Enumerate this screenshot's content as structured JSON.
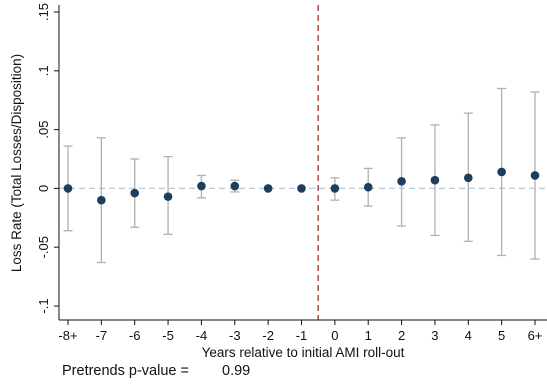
{
  "chart_data": {
    "type": "scatter",
    "subtype": "event-study coefficient plot with confidence intervals",
    "xlabel": "Years relative to initial AMI roll-out",
    "ylabel": "Loss Rate (Total Losses/Disposition)",
    "categories": [
      "-8+",
      "-7",
      "-6",
      "-5",
      "-4",
      "-3",
      "-2",
      "-1",
      "0",
      "1",
      "2",
      "3",
      "4",
      "5",
      "6+"
    ],
    "points": [
      {
        "x": "-8+",
        "y": 0.0,
        "ci_low": -0.036,
        "ci_high": 0.036
      },
      {
        "x": "-7",
        "y": -0.01,
        "ci_low": -0.063,
        "ci_high": 0.043
      },
      {
        "x": "-6",
        "y": -0.004,
        "ci_low": -0.033,
        "ci_high": 0.025
      },
      {
        "x": "-5",
        "y": -0.007,
        "ci_low": -0.039,
        "ci_high": 0.027
      },
      {
        "x": "-4",
        "y": 0.002,
        "ci_low": -0.008,
        "ci_high": 0.011
      },
      {
        "x": "-3",
        "y": 0.002,
        "ci_low": -0.003,
        "ci_high": 0.007
      },
      {
        "x": "-2",
        "y": 0.0,
        "ci_low": null,
        "ci_high": null
      },
      {
        "x": "-1",
        "y": 0.0,
        "ci_low": null,
        "ci_high": null
      },
      {
        "x": "0",
        "y": 0.0,
        "ci_low": -0.01,
        "ci_high": 0.009
      },
      {
        "x": "1",
        "y": 0.001,
        "ci_low": -0.015,
        "ci_high": 0.017
      },
      {
        "x": "2",
        "y": 0.006,
        "ci_low": -0.032,
        "ci_high": 0.043
      },
      {
        "x": "3",
        "y": 0.007,
        "ci_low": -0.04,
        "ci_high": 0.054
      },
      {
        "x": "4",
        "y": 0.009,
        "ci_low": -0.045,
        "ci_high": 0.064
      },
      {
        "x": "5",
        "y": 0.014,
        "ci_low": -0.057,
        "ci_high": 0.085
      },
      {
        "x": "6+",
        "y": 0.011,
        "ci_low": -0.06,
        "ci_high": 0.082
      }
    ],
    "ylim": [
      -0.1,
      0.15
    ],
    "yticks": [
      -0.1,
      -0.05,
      0,
      0.05,
      0.1,
      0.15
    ],
    "ytick_labels": [
      "-.1",
      "-.05",
      "0",
      ".05",
      ".1",
      ".15"
    ],
    "reference_lines": [
      {
        "orientation": "horizontal",
        "at": 0,
        "style": "dashed",
        "color": "#b9cbd8"
      },
      {
        "orientation": "vertical",
        "between": [
          "-1",
          "0"
        ],
        "style": "dashed",
        "color": "#a0302a"
      }
    ],
    "marker_color": "#1f3e5e",
    "ci_color": "#b0b0b0",
    "grid": false,
    "legend": "none"
  },
  "footer": {
    "pretrends_label": "Pretrends p-value =",
    "pretrends_value": "0.99"
  }
}
